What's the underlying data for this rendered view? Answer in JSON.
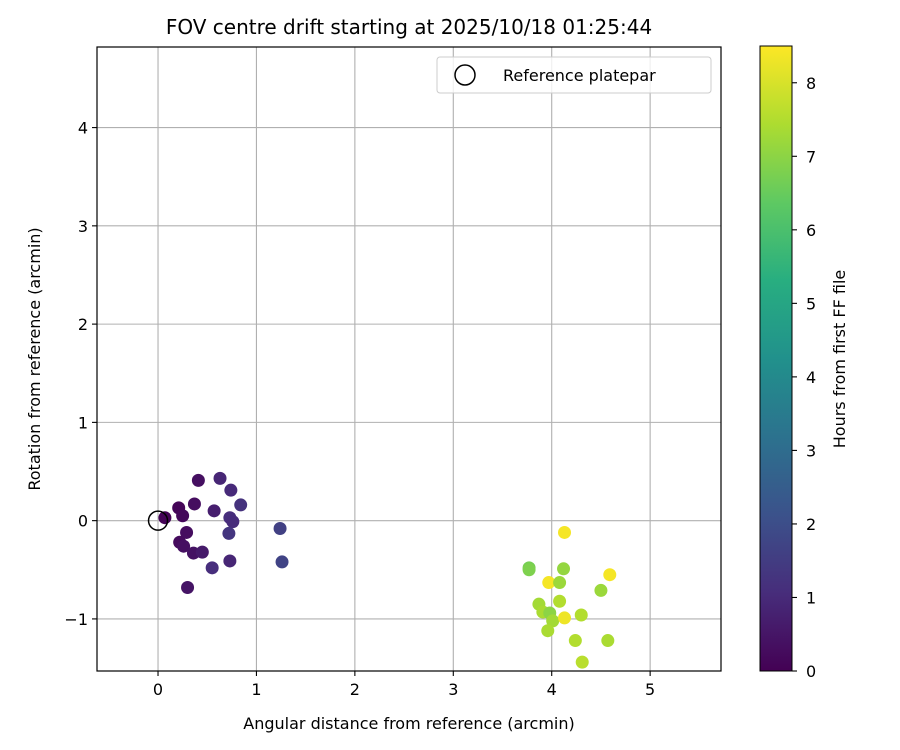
{
  "chart_data": {
    "type": "scatter",
    "title": "FOV centre drift starting at 2025/10/18 01:25:44",
    "xlabel": "Angular distance from reference (arcmin)",
    "ylabel": "Rotation from reference (arcmin)",
    "xlim": [
      -0.62,
      5.72
    ],
    "ylim": [
      -1.53,
      4.82
    ],
    "xticks": [
      0,
      1,
      2,
      3,
      4,
      5
    ],
    "yticks": [
      -1,
      0,
      1,
      2,
      3,
      4
    ],
    "xtick_labels": [
      "0",
      "1",
      "2",
      "3",
      "4",
      "5"
    ],
    "ytick_labels": [
      "−1",
      "0",
      "1",
      "2",
      "3",
      "4"
    ],
    "grid": true,
    "legend": {
      "location": "upper-right",
      "entries": [
        "Reference platepar"
      ]
    },
    "reference_point": {
      "x": 0,
      "y": 0,
      "label": "Reference platepar"
    },
    "colorbar": {
      "label": "Hours from first FF file",
      "colormap": "viridis",
      "range": [
        0,
        8.5
      ],
      "ticks": [
        0,
        1,
        2,
        3,
        4,
        5,
        6,
        7,
        8
      ],
      "tick_labels": [
        "0",
        "1",
        "2",
        "3",
        "4",
        "5",
        "6",
        "7",
        "8"
      ]
    },
    "points": [
      {
        "x": 0.07,
        "y": 0.03,
        "h": 0.05
      },
      {
        "x": 0.21,
        "y": 0.13,
        "h": 0.1
      },
      {
        "x": 0.25,
        "y": 0.05,
        "h": 0.15
      },
      {
        "x": 0.37,
        "y": 0.17,
        "h": 0.3
      },
      {
        "x": 0.41,
        "y": 0.41,
        "h": 0.35
      },
      {
        "x": 0.29,
        "y": -0.12,
        "h": 0.3
      },
      {
        "x": 0.22,
        "y": -0.22,
        "h": 0.25
      },
      {
        "x": 0.26,
        "y": -0.26,
        "h": 0.35
      },
      {
        "x": 0.36,
        "y": -0.33,
        "h": 0.4
      },
      {
        "x": 0.45,
        "y": -0.32,
        "h": 0.6
      },
      {
        "x": 0.3,
        "y": -0.68,
        "h": 0.45
      },
      {
        "x": 0.57,
        "y": 0.1,
        "h": 0.7
      },
      {
        "x": 0.63,
        "y": 0.43,
        "h": 0.9
      },
      {
        "x": 0.74,
        "y": 0.31,
        "h": 1.0
      },
      {
        "x": 0.84,
        "y": 0.16,
        "h": 1.2
      },
      {
        "x": 0.73,
        "y": 0.03,
        "h": 1.1
      },
      {
        "x": 0.76,
        "y": -0.01,
        "h": 1.05
      },
      {
        "x": 0.72,
        "y": -0.13,
        "h": 1.3
      },
      {
        "x": 0.55,
        "y": -0.48,
        "h": 1.1
      },
      {
        "x": 0.73,
        "y": -0.41,
        "h": 0.9
      },
      {
        "x": 1.24,
        "y": -0.08,
        "h": 1.6
      },
      {
        "x": 1.26,
        "y": -0.42,
        "h": 1.7
      },
      {
        "x": 3.77,
        "y": -0.48,
        "h": 6.7
      },
      {
        "x": 3.77,
        "y": -0.5,
        "h": 6.8
      },
      {
        "x": 3.97,
        "y": -0.63,
        "h": 8.4
      },
      {
        "x": 4.08,
        "y": -0.63,
        "h": 7.2
      },
      {
        "x": 4.12,
        "y": -0.49,
        "h": 7.1
      },
      {
        "x": 4.13,
        "y": -0.12,
        "h": 8.4
      },
      {
        "x": 4.59,
        "y": -0.55,
        "h": 8.4
      },
      {
        "x": 4.5,
        "y": -0.71,
        "h": 7.2
      },
      {
        "x": 3.87,
        "y": -0.85,
        "h": 7.3
      },
      {
        "x": 3.91,
        "y": -0.93,
        "h": 7.4
      },
      {
        "x": 3.98,
        "y": -0.94,
        "h": 7.0
      },
      {
        "x": 4.01,
        "y": -1.02,
        "h": 7.3
      },
      {
        "x": 4.08,
        "y": -0.82,
        "h": 7.5
      },
      {
        "x": 4.13,
        "y": -0.99,
        "h": 8.3
      },
      {
        "x": 4.3,
        "y": -0.96,
        "h": 7.5
      },
      {
        "x": 3.96,
        "y": -1.12,
        "h": 7.4
      },
      {
        "x": 4.24,
        "y": -1.22,
        "h": 7.5
      },
      {
        "x": 4.57,
        "y": -1.22,
        "h": 7.4
      },
      {
        "x": 4.31,
        "y": -1.44,
        "h": 7.6
      }
    ]
  }
}
